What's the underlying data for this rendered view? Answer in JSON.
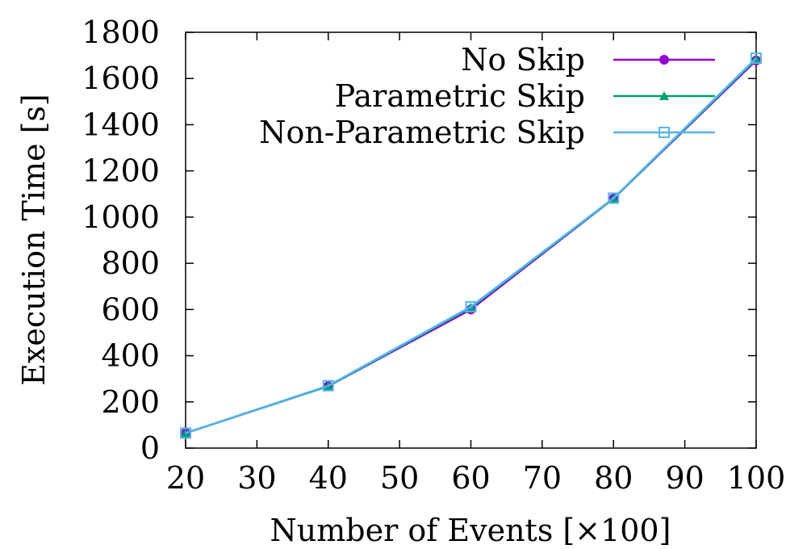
{
  "chart_data": {
    "type": "line",
    "title": "",
    "xlabel": "Number of Events [×100]",
    "ylabel": "Execution Time [s]",
    "x": [
      20,
      40,
      60,
      80,
      100
    ],
    "xlim": [
      20,
      100
    ],
    "ylim": [
      0,
      1800
    ],
    "xticks": [
      20,
      30,
      40,
      50,
      60,
      70,
      80,
      90,
      100
    ],
    "yticks": [
      0,
      200,
      400,
      600,
      800,
      1000,
      1200,
      1400,
      1600,
      1800
    ],
    "grid": false,
    "legend_position": "top-right",
    "series": [
      {
        "name": "No Skip",
        "values": [
          65,
          268,
          600,
          1080,
          1678
        ],
        "color": "#9400d3",
        "marker": "circle"
      },
      {
        "name": "Parametric Skip",
        "values": [
          65,
          268,
          608,
          1080,
          1684
        ],
        "color": "#009e73",
        "marker": "triangle"
      },
      {
        "name": "Non-Parametric Skip",
        "values": [
          65,
          270,
          612,
          1082,
          1688
        ],
        "color": "#56b4e9",
        "marker": "square-open"
      }
    ]
  }
}
